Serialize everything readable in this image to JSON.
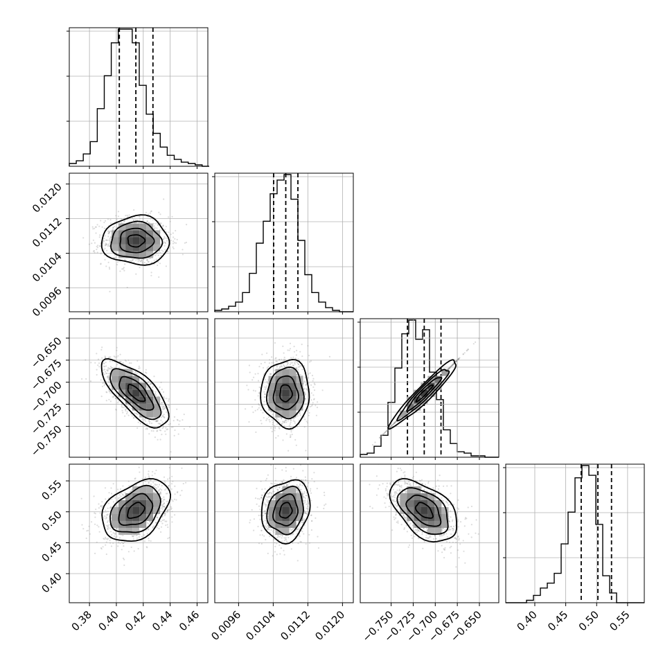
{
  "chart_data": {
    "type": "corner",
    "grid": true,
    "parameters": [
      {
        "range": [
          0.365,
          0.468
        ],
        "ticks": [
          "0.38",
          "0.40",
          "0.42",
          "0.44",
          "0.46"
        ],
        "hist": {
          "edges_start": 0.365,
          "bin_width": 0.0052,
          "counts": [
            2,
            4,
            9,
            18,
            42,
            66,
            90,
            100,
            100,
            90,
            59,
            38,
            24,
            14,
            8,
            5,
            3,
            2,
            1,
            0
          ]
        },
        "quantiles": [
          0.4022,
          0.4145,
          0.4272
        ]
      },
      {
        "range": [
          0.00905,
          0.01225
        ],
        "ticks": [
          "0.0096",
          "0.0104",
          "0.0112",
          "0.0120"
        ],
        "hist": {
          "edges_start": 0.00905,
          "bin_width": 0.00016,
          "counts": [
            1,
            2,
            4,
            7,
            14,
            28,
            50,
            66,
            86,
            96,
            100,
            82,
            52,
            27,
            14,
            7,
            3,
            1,
            0,
            0
          ]
        },
        "quantiles": [
          0.01041,
          0.01069,
          0.01097
        ]
      },
      {
        "range": [
          -0.785,
          -0.628
        ],
        "ticks": [
          "−0.750",
          "−0.725",
          "−0.700",
          "−0.675",
          "−0.650"
        ],
        "hist": {
          "edges_start": -0.785,
          "bin_width": 0.00785,
          "counts": [
            2,
            3,
            8,
            16,
            40,
            65,
            90,
            100,
            86,
            93,
            62,
            42,
            20,
            10,
            4,
            3,
            1,
            1,
            0,
            0
          ]
        },
        "quantiles": [
          -0.7315,
          -0.7125,
          -0.6935
        ]
      },
      {
        "range": [
          0.353,
          0.577
        ],
        "ticks": [
          "0.40",
          "0.45",
          "0.50",
          "0.55"
        ],
        "hist": {
          "edges_start": 0.353,
          "bin_width": 0.0112,
          "counts": [
            0,
            0,
            0,
            2,
            6,
            12,
            16,
            24,
            48,
            74,
            102,
            112,
            104,
            64,
            22,
            8,
            0,
            0,
            0,
            0
          ]
        },
        "quantiles": [
          0.475,
          0.502,
          0.524
        ]
      }
    ],
    "pairs": [
      {
        "row": 1,
        "col": 0,
        "mean": [
          0.4145,
          0.01069
        ],
        "sd": [
          0.0125,
          0.00028
        ],
        "rho": 0.0
      },
      {
        "row": 2,
        "col": 0,
        "mean": [
          0.4145,
          -0.7125
        ],
        "sd": [
          0.0125,
          0.019
        ],
        "rho": -0.72
      },
      {
        "row": 2,
        "col": 1,
        "mean": [
          0.01069,
          -0.7125
        ],
        "sd": [
          0.00028,
          0.019
        ],
        "rho": 0.0
      },
      {
        "row": 2,
        "col": 2,
        "mean": [
          -0.7125,
          -0.7125
        ],
        "sd": [
          0.019,
          0.019
        ],
        "rho": 1.0
      },
      {
        "row": 3,
        "col": 0,
        "mean": [
          0.4145,
          0.502
        ],
        "sd": [
          0.0125,
          0.025
        ],
        "rho": 0.38
      },
      {
        "row": 3,
        "col": 1,
        "mean": [
          0.01069,
          0.502
        ],
        "sd": [
          0.00028,
          0.025
        ],
        "rho": 0.15
      },
      {
        "row": 3,
        "col": 2,
        "mean": [
          -0.7125,
          0.502
        ],
        "sd": [
          0.019,
          0.025
        ],
        "rho": -0.5
      }
    ]
  }
}
